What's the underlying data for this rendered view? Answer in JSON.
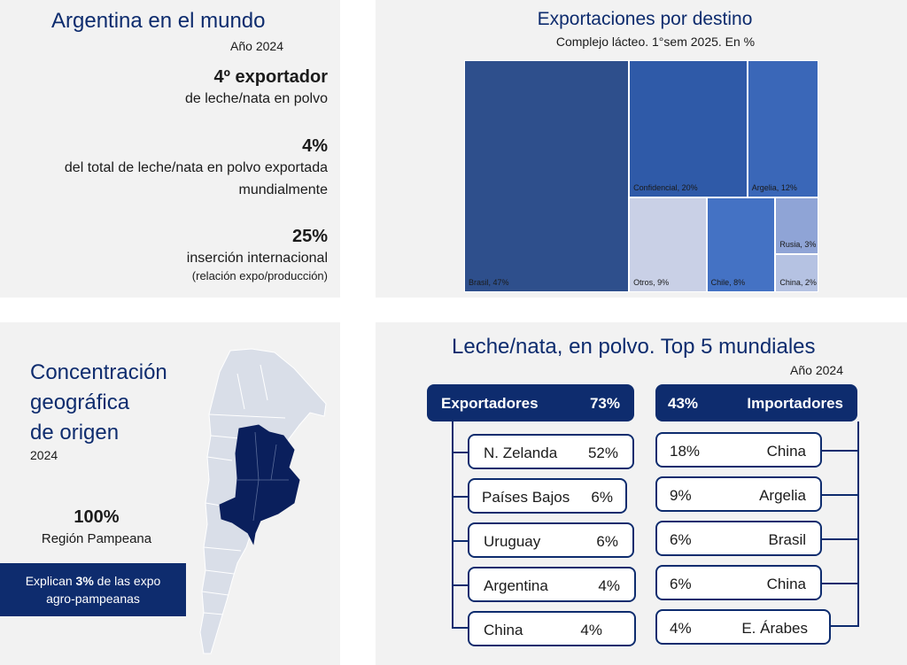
{
  "world": {
    "title": "Argentina en el mundo",
    "year": "Año 2024",
    "stat1_value": "4º exportador",
    "stat1_text": "de leche/nata en polvo",
    "stat2_value": "4%",
    "stat2_line1": "del total de leche/nata en polvo exportada",
    "stat2_line2": "mundialmente",
    "stat3_value": "25%",
    "stat3_text": "inserción internacional",
    "stat3_note": "(relación expo/producción)"
  },
  "destinos": {
    "title": "Exportaciones por destino",
    "subtitle": "Complejo lácteo. 1°sem 2025. En %"
  },
  "chart_data": {
    "type": "treemap",
    "title": "Exportaciones por destino",
    "subtitle": "Complejo lácteo. 1°sem 2025. En %",
    "items": [
      {
        "name": "Brasil",
        "value": 47,
        "label": "Brasil, 47%",
        "color": "#2e4f8c"
      },
      {
        "name": "Confidencial",
        "value": 20,
        "label": "Confidencial, 20%",
        "color": "#2f5aa8"
      },
      {
        "name": "Argelia",
        "value": 12,
        "label": "Argelia, 12%",
        "color": "#3a67b8"
      },
      {
        "name": "Otros",
        "value": 9,
        "label": "Otros, 9%",
        "color": "#c9d0e6"
      },
      {
        "name": "Chile",
        "value": 8,
        "label": "Chile, 8%",
        "color": "#4472c4"
      },
      {
        "name": "Rusia",
        "value": 3,
        "label": "Rusia, 3%",
        "color": "#8fa4d6"
      },
      {
        "name": "China",
        "value": 2,
        "label": "China, 2%",
        "color": "#b5c2e2"
      }
    ]
  },
  "concentracion": {
    "title_line1": "Concentración",
    "title_line2": "geográfica",
    "title_line3": "de origen",
    "year": "2024",
    "pct": "100%",
    "region": "Región Pampeana",
    "box_pre": "Explican ",
    "box_bold": "3%",
    "box_post": " de las expo",
    "box_line2": "agro-pampeanas",
    "colors": {
      "region": "#0a1f5c",
      "country": "#d9dee8",
      "border": "#ffffff"
    }
  },
  "top5": {
    "title": "Leche/nata, en polvo. Top 5 mundiales",
    "year": "Año 2024",
    "exp_header": "Exportadores",
    "exp_total": "73%",
    "imp_total": "43%",
    "imp_header": "Importadores",
    "exporters": [
      {
        "name": "N. Zelanda",
        "pct": "52%"
      },
      {
        "name": "Países Bajos",
        "pct": "6%"
      },
      {
        "name": "Uruguay",
        "pct": "6%"
      },
      {
        "name": "Argentina",
        "pct": "4%"
      },
      {
        "name": "China",
        "pct": "4%"
      }
    ],
    "importers": [
      {
        "pct": "18%",
        "name": "China"
      },
      {
        "pct": "9%",
        "name": "Argelia"
      },
      {
        "pct": "6%",
        "name": "Brasil"
      },
      {
        "pct": "6%",
        "name": "China"
      },
      {
        "pct": "4%",
        "name": "E. Árabes"
      }
    ]
  }
}
